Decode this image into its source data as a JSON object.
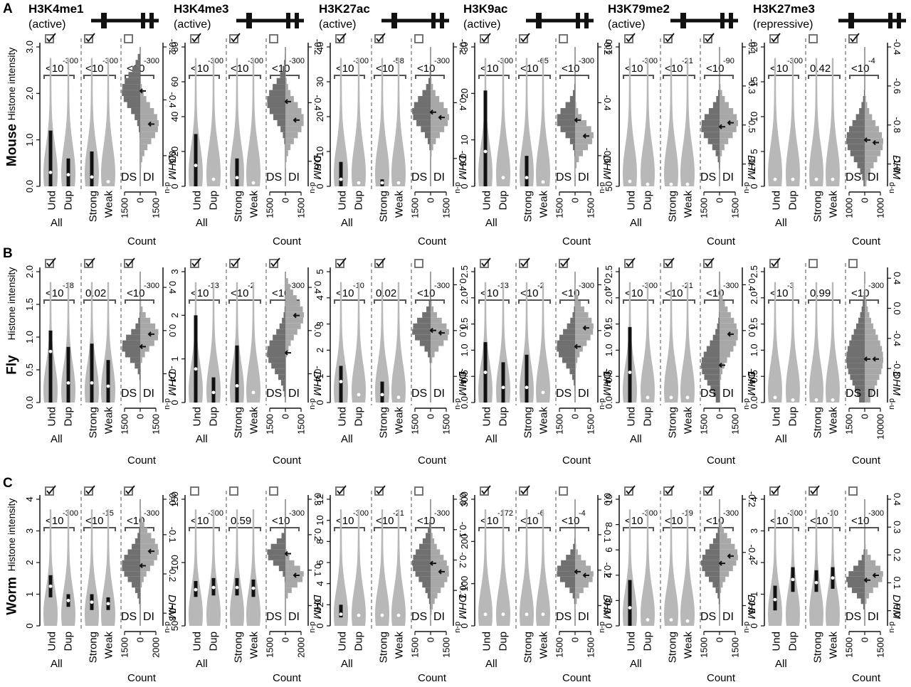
{
  "figure": {
    "rows": [
      {
        "letter": "A",
        "organism": "Mouse",
        "ylabel": "Histone intensity"
      },
      {
        "letter": "B",
        "organism": "Fly",
        "ylabel": "Histone intensity"
      },
      {
        "letter": "C",
        "organism": "Worm",
        "ylabel": "Histone intensity"
      }
    ],
    "columns": [
      {
        "mark": "H3K4me1",
        "state": "(active)"
      },
      {
        "mark": "H3K4me3",
        "state": "(active)"
      },
      {
        "mark": "H3K27ac",
        "state": "(active)"
      },
      {
        "mark": "H3K9ac",
        "state": "(active)"
      },
      {
        "mark": "H3K79me2",
        "state": "(active)"
      },
      {
        "mark": "H3K27me3",
        "state": "(repressive)"
      }
    ],
    "labels": {
      "und": "Und",
      "dup": "Dup",
      "all": "All",
      "strong": "Strong",
      "weak": "Weak",
      "ds": "DS",
      "di": "DI",
      "count": "Count",
      "dhm": "DHM",
      "dhm_sub": "d-u",
      "lt10": "<10"
    }
  },
  "chart_data": [
    {
      "type": "violin",
      "organism": "Mouse",
      "mark": "H3K4me1",
      "yticks": [
        "0.0",
        "1.0",
        "2.0",
        "3.0"
      ],
      "ymax": 3.0,
      "dhm_ticks": [
        "-0.2",
        "-0.4",
        "-0.6"
      ],
      "dhm_pos": [
        1.0,
        0.62,
        0.22
      ],
      "count_ticks": [
        "1500",
        "0",
        "1500"
      ],
      "p_all": "-300",
      "p_sw": "-300",
      "p_ds": "-300",
      "t_all": "<10",
      "t_sw": "<10",
      "t_ds": "<10",
      "check": [
        true,
        true,
        false
      ],
      "box_und": [
        0,
        1.2
      ],
      "box_dup": [
        0,
        0.6
      ],
      "box_str": [
        0,
        0.75
      ],
      "box_weak": [
        0,
        0
      ],
      "med_und": 0.3,
      "med_dup": 0.25,
      "med_str": 0.2,
      "med_weak": 0.1,
      "hist_ds": 0.72,
      "hist_di": 0.47,
      "hist_spread": 0.18
    },
    {
      "type": "violin",
      "organism": "Mouse",
      "mark": "H3K4me3",
      "yticks": [
        "0",
        "20",
        "40",
        "60",
        "80"
      ],
      "ymax": 80,
      "dhm_ticks": [
        "-0.2",
        "-0.4",
        "-0.6"
      ],
      "dhm_pos": [
        1.0,
        0.6,
        0.18
      ],
      "count_ticks": [
        "1500",
        "0",
        "1500"
      ],
      "p_all": "-300",
      "p_sw": "-300",
      "p_ds": "-300",
      "t_all": "<10",
      "t_sw": "<10",
      "t_ds": "<10",
      "check": [
        true,
        true,
        false
      ],
      "box_und": [
        0,
        30
      ],
      "box_dup": [
        0,
        0
      ],
      "box_str": [
        0,
        16
      ],
      "box_weak": [
        0,
        0
      ],
      "med_und": 12,
      "med_dup": 4,
      "med_str": 5,
      "med_weak": 2,
      "hist_ds": 0.64,
      "hist_di": 0.5,
      "hist_spread": 0.18
    },
    {
      "type": "violin",
      "organism": "Mouse",
      "mark": "H3K27ac",
      "yticks": [
        "0",
        "10",
        "20",
        "30",
        "40"
      ],
      "ymax": 40,
      "dhm_ticks": [
        "-0.2",
        "-0.4",
        "-0.6"
      ],
      "dhm_pos": [
        1.0,
        0.6,
        0.2
      ],
      "count_ticks": [
        "1500",
        "0",
        "1500"
      ],
      "p_all": "-300",
      "p_sw": "-58",
      "p_ds": "-300",
      "t_all": "<10",
      "t_sw": "<10",
      "t_ds": "<10",
      "check": [
        true,
        true,
        false
      ],
      "box_und": [
        0,
        7
      ],
      "box_dup": [
        0,
        0
      ],
      "box_str": [
        0,
        2
      ],
      "box_weak": [
        0,
        0
      ],
      "med_und": 2,
      "med_dup": 1,
      "med_str": 1,
      "med_weak": 1,
      "hist_ds": 0.56,
      "hist_di": 0.52,
      "hist_spread": 0.16
    },
    {
      "type": "violin",
      "organism": "Mouse",
      "mark": "H3K9ac",
      "yticks": [
        "0",
        "10",
        "20",
        "30"
      ],
      "ymax": 32,
      "dhm_ticks": [
        "-0.2",
        "-0.4",
        "-0.6"
      ],
      "dhm_pos": [
        1.0,
        0.6,
        0.22
      ],
      "count_ticks": [
        "1500",
        "0",
        "1500"
      ],
      "p_all": "-300",
      "p_sw": "-65",
      "p_ds": "-300",
      "t_all": "<10",
      "t_sw": "<10",
      "t_ds": "<10",
      "check": [
        true,
        true,
        false
      ],
      "box_und": [
        0,
        22
      ],
      "box_dup": [
        0,
        0
      ],
      "box_str": [
        0,
        7
      ],
      "box_weak": [
        0,
        0
      ],
      "med_und": 8,
      "med_dup": 2,
      "med_str": 2,
      "med_weak": 1,
      "hist_ds": 0.5,
      "hist_di": 0.38,
      "hist_spread": 0.14
    },
    {
      "type": "violin",
      "organism": "Mouse",
      "mark": "H3K79me2",
      "yticks": [
        "50",
        "100"
      ],
      "ymax": 140,
      "dhm_ticks": [
        "-0.1",
        "-0.3",
        "-0.5",
        "-0.7"
      ],
      "dhm_pos": [
        1.0,
        0.72,
        0.44,
        0.16
      ],
      "count_ticks": [
        "1500",
        "0",
        "1500"
      ],
      "p_all": "-300",
      "p_sw": "-21",
      "p_ds": "-90",
      "t_all": "<10",
      "t_sw": "<10",
      "t_ds": "<10",
      "check": [
        true,
        true,
        true
      ],
      "box_und": [
        0,
        0
      ],
      "box_dup": [
        0,
        0
      ],
      "box_str": [
        0,
        0
      ],
      "box_weak": [
        0,
        0
      ],
      "med_und": 5,
      "med_dup": 2,
      "med_str": 2,
      "med_weak": 2,
      "hist_ds": 0.45,
      "hist_di": 0.48,
      "hist_spread": 0.16
    },
    {
      "type": "violin",
      "organism": "Mouse",
      "mark": "H3K27me3",
      "yticks": [
        "0",
        "5",
        "10",
        "15",
        "20"
      ],
      "ymax": 20,
      "dhm_ticks": [
        "-0.4",
        "-0.6",
        "-0.8",
        "-1.0"
      ],
      "dhm_pos": [
        1.0,
        0.72,
        0.44,
        0.16
      ],
      "count_ticks": [
        "1000",
        "0",
        "1000"
      ],
      "p_all": "-300",
      "p_sw": "",
      "p_ds": "-4",
      "t_all": "<10",
      "t_sw": "0.42",
      "t_ds": "<10",
      "check": [
        true,
        false,
        true
      ],
      "box_und": [
        0,
        0
      ],
      "box_dup": [
        0,
        0
      ],
      "box_str": [
        0,
        0
      ],
      "box_weak": [
        0,
        0
      ],
      "med_und": 1,
      "med_dup": 1,
      "med_str": 1,
      "med_weak": 1,
      "hist_ds": 0.35,
      "hist_di": 0.33,
      "hist_spread": 0.2
    },
    {
      "type": "violin",
      "organism": "Fly",
      "mark": "H3K4me1",
      "yticks": [
        "0.0",
        "0.5",
        "1.0",
        "1.5",
        "2.0"
      ],
      "ymax": 2.0,
      "dhm_ticks": [
        "0.4",
        "0.0",
        "-0.4"
      ],
      "dhm_pos": [
        0.88,
        0.55,
        0.22
      ],
      "count_ticks": [
        "1500",
        "0",
        "1500"
      ],
      "p_all": "-18",
      "p_sw": "",
      "p_ds": "-300",
      "t_all": "<10",
      "t_sw": "0.02",
      "t_ds": "<10",
      "check": [
        true,
        true,
        true
      ],
      "box_und": [
        0,
        1.1
      ],
      "box_dup": [
        0,
        0.85
      ],
      "box_str": [
        0,
        0.9
      ],
      "box_weak": [
        0,
        0.65
      ],
      "med_und": 0.78,
      "med_dup": 0.3,
      "med_str": 0.3,
      "med_weak": 0.25,
      "hist_ds": 0.45,
      "hist_di": 0.55,
      "hist_spread": 0.14
    },
    {
      "type": "violin",
      "organism": "Fly",
      "mark": "H3K4me3",
      "yticks": [
        "0",
        "1",
        "2",
        "3"
      ],
      "ymax": 3.9,
      "dhm_ticks": [
        "0.4",
        "0.0",
        "-0.4"
      ],
      "dhm_pos": [
        0.88,
        0.55,
        0.22
      ],
      "count_ticks": [
        "1500",
        "0",
        "1500"
      ],
      "p_all": "-13",
      "p_sw": "-2",
      "p_ds": "-300",
      "t_all": "<10",
      "t_sw": "<10",
      "t_ds": "<10",
      "check": [
        true,
        true,
        true
      ],
      "box_und": [
        0,
        2.6
      ],
      "box_dup": [
        0,
        0.75
      ],
      "box_str": [
        0,
        1.7
      ],
      "box_weak": [
        0,
        0
      ],
      "med_und": 1.0,
      "med_dup": 0.3,
      "med_str": 0.5,
      "med_weak": 0.3,
      "hist_ds": 0.4,
      "hist_di": 0.7,
      "hist_spread": 0.2
    },
    {
      "type": "violin",
      "organism": "Fly",
      "mark": "H3K27ac",
      "yticks": [
        "0",
        "1",
        "2",
        "3",
        "4",
        "5"
      ],
      "ymax": 5,
      "dhm_ticks": [
        "0.4",
        "0.0",
        "-0.4"
      ],
      "dhm_pos": [
        0.9,
        0.55,
        0.2
      ],
      "count_ticks": [
        "1500",
        "0",
        "1500"
      ],
      "p_all": "-10",
      "p_sw": "",
      "p_ds": "-300",
      "t_all": "<10",
      "t_sw": "0.02",
      "t_ds": "<10",
      "check": [
        true,
        true,
        false
      ],
      "box_und": [
        0,
        1.4
      ],
      "box_dup": [
        0,
        0
      ],
      "box_str": [
        0,
        0.8
      ],
      "box_weak": [
        0,
        0
      ],
      "med_und": 0.8,
      "med_dup": 0.3,
      "med_str": 0.3,
      "med_weak": 0.2,
      "hist_ds": 0.58,
      "hist_di": 0.56,
      "hist_spread": 0.14
    },
    {
      "type": "violin",
      "organism": "Fly",
      "mark": "H3K9ac",
      "yticks": [
        "0.0",
        "0.5",
        "1.0",
        "1.5",
        "2.0",
        "2.5"
      ],
      "ymax": 2.6,
      "dhm_ticks": [
        "0.4",
        "0.0",
        "-0.4"
      ],
      "dhm_pos": [
        0.9,
        0.55,
        0.2
      ],
      "count_ticks": [
        "1500",
        "0",
        "1500"
      ],
      "p_all": "-13",
      "p_sw": "-2",
      "p_ds": "-300",
      "t_all": "<10",
      "t_sw": "<10",
      "t_ds": "<10",
      "check": [
        true,
        true,
        true
      ],
      "box_und": [
        0,
        1.2
      ],
      "box_dup": [
        0,
        0.8
      ],
      "box_str": [
        0,
        0.95
      ],
      "box_weak": [
        0,
        0
      ],
      "med_und": 0.6,
      "med_dup": 0.3,
      "med_str": 0.3,
      "med_weak": 0.2,
      "hist_ds": 0.45,
      "hist_di": 0.6,
      "hist_spread": 0.18
    },
    {
      "type": "violin",
      "organism": "Fly",
      "mark": "H3K79me2",
      "yticks": [
        "0.0",
        "0.5",
        "1.0",
        "1.5",
        "2.0",
        "2.5"
      ],
      "ymax": 2.6,
      "dhm_ticks": [
        "0.4",
        "0.0",
        "-0.4"
      ],
      "dhm_pos": [
        0.9,
        0.55,
        0.2
      ],
      "count_ticks": [
        "1500",
        "0",
        "1500"
      ],
      "p_all": "-300",
      "p_sw": "-21",
      "p_ds": "-300",
      "t_all": "<10",
      "t_sw": "<10",
      "t_ds": "<10",
      "check": [
        true,
        true,
        true
      ],
      "box_und": [
        0,
        1.5
      ],
      "box_dup": [
        0,
        0
      ],
      "box_str": [
        0,
        0
      ],
      "box_weak": [
        0,
        0
      ],
      "med_und": 0.6,
      "med_dup": 0.1,
      "med_str": 0.1,
      "med_weak": 0.1,
      "hist_ds": 0.3,
      "hist_di": 0.55,
      "hist_spread": 0.22
    },
    {
      "type": "violin",
      "organism": "Fly",
      "mark": "H3K27me3",
      "yticks": [
        "0.0",
        "0.5",
        "1.0",
        "1.5",
        "2.0",
        "2.5"
      ],
      "ymax": 2.6,
      "dhm_ticks": [
        "0.4",
        "0.0",
        "-0.4",
        "-0.8"
      ],
      "dhm_pos": [
        0.95,
        0.72,
        0.49,
        0.26
      ],
      "count_ticks": [
        "1500",
        "0",
        "10000"
      ],
      "p_all": "-3",
      "p_sw": "",
      "p_ds": "-300",
      "t_all": "<10",
      "t_sw": "0.99",
      "t_ds": "<10",
      "check": [
        true,
        false,
        false
      ],
      "box_und": [
        0,
        0
      ],
      "box_dup": [
        0,
        0
      ],
      "box_str": [
        0,
        0
      ],
      "box_weak": [
        0,
        0
      ],
      "med_und": 0.1,
      "med_dup": 0.05,
      "med_str": 0.05,
      "med_weak": 0.05,
      "hist_ds": 0.35,
      "hist_di": 0.35,
      "hist_spread": 0.3
    },
    {
      "type": "violin",
      "organism": "Worm",
      "mark": "H3K4me1",
      "yticks": [
        "0",
        "1",
        "2",
        "3",
        "4"
      ],
      "ymax": 4,
      "dhm_ticks": [
        "0.0",
        "-0.1",
        "-0.2",
        "-0.3"
      ],
      "dhm_pos": [
        1.0,
        0.72,
        0.41,
        0.1
      ],
      "count_ticks": [
        "1500",
        "0",
        "2000"
      ],
      "p_all": "-300",
      "p_sw": "-15",
      "p_ds": "-300",
      "t_all": "<10",
      "t_sw": "<10",
      "t_ds": "<10",
      "check": [
        true,
        true,
        true
      ],
      "box_und": [
        0.9,
        1.6
      ],
      "box_dup": [
        0.6,
        1.0
      ],
      "box_str": [
        0.5,
        1.0
      ],
      "box_weak": [
        0.5,
        0.9
      ],
      "med_und": 1.25,
      "med_dup": 0.8,
      "med_str": 0.75,
      "med_weak": 0.7,
      "hist_ds": 0.5,
      "hist_di": 0.62,
      "hist_spread": 0.18
    },
    {
      "type": "violin",
      "organism": "Worm",
      "mark": "H3K4me3",
      "yticks": [
        "50",
        "100",
        "150"
      ],
      "ymax": 175,
      "dhm_ticks": [
        "0.3",
        "0.2",
        "0.1",
        "0.0"
      ],
      "dhm_pos": [
        1.0,
        0.72,
        0.44,
        0.16
      ],
      "count_ticks": [
        "1500",
        "0",
        "2000"
      ],
      "p_all": "-300",
      "p_sw": "",
      "p_ds": "-300",
      "t_all": "<10",
      "t_sw": "0.59",
      "t_ds": "<10",
      "check": [
        false,
        false,
        false
      ],
      "box_und": [
        40,
        62
      ],
      "box_dup": [
        42,
        66
      ],
      "box_str": [
        42,
        66
      ],
      "box_weak": [
        40,
        64
      ],
      "med_und": 50,
      "med_dup": 53,
      "med_str": 53,
      "med_weak": 52,
      "hist_ds": 0.6,
      "hist_di": 0.42,
      "hist_spread": 0.12
    },
    {
      "type": "violin",
      "organism": "Worm",
      "mark": "H3K27ac",
      "yticks": [
        "0",
        "2",
        "4",
        "6",
        "8",
        "10",
        "12"
      ],
      "ymax": 12,
      "dhm_ticks": [
        "0.0",
        "-0.1",
        "-0.2",
        "-0.3"
      ],
      "dhm_pos": [
        1.0,
        0.76,
        0.52,
        0.28
      ],
      "count_ticks": [
        "1500",
        "0",
        "1500"
      ],
      "p_all": "-300",
      "p_sw": "-21",
      "p_ds": "-300",
      "t_all": "<10",
      "t_sw": "<10",
      "t_ds": "<10",
      "check": [
        true,
        true,
        false
      ],
      "box_und": [
        0.8,
        2.0
      ],
      "box_dup": [
        0,
        0
      ],
      "box_str": [
        0,
        0
      ],
      "box_weak": [
        0,
        0
      ],
      "med_und": 1.1,
      "med_dup": 1.0,
      "med_str": 1.0,
      "med_weak": 1.0,
      "hist_ds": 0.52,
      "hist_di": 0.45,
      "hist_spread": 0.2
    },
    {
      "type": "violin",
      "organism": "Worm",
      "mark": "H3K9ac",
      "yticks": [
        "0",
        "100",
        "200",
        "300"
      ],
      "ymax": 330,
      "dhm_ticks": [
        "0.0",
        "-0.1",
        "-0.2",
        "-0.3"
      ],
      "dhm_pos": [
        1.0,
        0.72,
        0.44,
        0.16
      ],
      "count_ticks": [
        "1500",
        "0",
        "1500"
      ],
      "p_all": "-172",
      "p_sw": "-6",
      "p_ds": "-4",
      "t_all": "<10",
      "t_sw": "<10",
      "t_ds": "<10",
      "check": [
        true,
        true,
        false
      ],
      "box_und": [
        0,
        0
      ],
      "box_dup": [
        0,
        0
      ],
      "box_str": [
        0,
        0
      ],
      "box_weak": [
        0,
        0
      ],
      "med_und": 30,
      "med_dup": 30,
      "med_str": 30,
      "med_weak": 30,
      "hist_ds": 0.45,
      "hist_di": 0.42,
      "hist_spread": 0.14
    },
    {
      "type": "violin",
      "organism": "Worm",
      "mark": "H3K79me2",
      "yticks": [
        "0",
        "2",
        "4",
        "6",
        "8",
        "10"
      ],
      "ymax": 10.5,
      "dhm_ticks": [
        "-0.2",
        "-0.4",
        "-0.6"
      ],
      "dhm_pos": [
        1.0,
        0.58,
        0.16
      ],
      "count_ticks": [
        "1500",
        "0",
        "1500"
      ],
      "p_all": "-300",
      "p_sw": "-19",
      "p_ds": "-300",
      "t_all": "<10",
      "t_sw": "<10",
      "t_ds": "<10",
      "check": [
        true,
        true,
        true
      ],
      "box_und": [
        0,
        3.8
      ],
      "box_dup": [
        0,
        0
      ],
      "box_str": [
        0,
        0
      ],
      "box_weak": [
        0,
        0
      ],
      "med_und": 1.5,
      "med_dup": 0.5,
      "med_str": 0.5,
      "med_weak": 0.4,
      "hist_ds": 0.52,
      "hist_di": 0.58,
      "hist_spread": 0.18
    },
    {
      "type": "violin",
      "organism": "Worm",
      "mark": "H3K27me3",
      "yticks": [
        "0",
        "1",
        "2",
        "3",
        "4"
      ],
      "ymax": 4.1,
      "dhm_ticks": [
        "0.4",
        "0.3",
        "0.2",
        "0.1",
        "0.0"
      ],
      "dhm_pos": [
        1.0,
        0.78,
        0.56,
        0.34,
        0.12
      ],
      "count_ticks": [
        "1500",
        "0",
        "1500"
      ],
      "p_all": "-300",
      "p_sw": "-10",
      "p_ds": "-300",
      "t_all": "<10",
      "t_sw": "<10",
      "t_ds": "<10",
      "check": [
        true,
        true,
        false
      ],
      "box_und": [
        0.5,
        1.3
      ],
      "box_dup": [
        1.1,
        1.9
      ],
      "box_str": [
        1.1,
        1.8
      ],
      "box_weak": [
        1.2,
        1.9
      ],
      "med_und": 0.85,
      "med_dup": 1.5,
      "med_str": 1.4,
      "med_weak": 1.55,
      "hist_ds": 0.38,
      "hist_di": 0.42,
      "hist_spread": 0.14
    }
  ]
}
